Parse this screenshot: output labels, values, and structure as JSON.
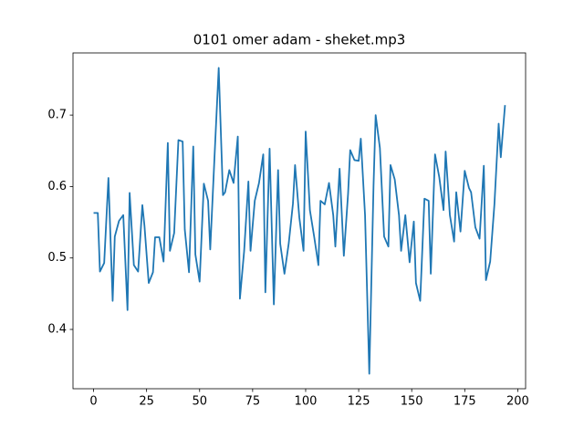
{
  "chart_data": {
    "type": "line",
    "title": "0101 omer adam - sheket.mp3",
    "x": [
      0,
      2,
      3,
      5,
      7,
      9,
      10,
      12,
      14,
      16,
      17,
      19,
      21,
      23,
      24,
      26,
      28,
      29,
      31,
      33,
      35,
      36,
      38,
      40,
      42,
      43,
      45,
      47,
      48,
      50,
      52,
      54,
      55,
      57,
      59,
      61,
      62,
      64,
      66,
      68,
      69,
      71,
      73,
      74,
      76,
      78,
      80,
      81,
      83,
      85,
      87,
      88,
      90,
      92,
      94,
      95,
      97,
      99,
      100,
      102,
      104,
      106,
      107,
      109,
      111,
      113,
      114,
      116,
      118,
      120,
      121,
      123,
      125,
      126,
      128,
      130,
      132,
      133,
      135,
      137,
      139,
      140,
      142,
      144,
      145,
      147,
      149,
      151,
      152,
      154,
      156,
      158,
      159,
      161,
      163,
      165,
      166,
      168,
      170,
      171,
      173,
      175,
      177,
      178,
      180,
      182,
      184,
      185,
      187,
      189,
      191,
      192,
      194
    ],
    "series": [
      {
        "color": "#1f77b4",
        "values": [
          0.563,
          0.563,
          0.481,
          0.493,
          0.612,
          0.44,
          0.53,
          0.552,
          0.56,
          0.427,
          0.591,
          0.49,
          0.481,
          0.574,
          0.545,
          0.465,
          0.48,
          0.529,
          0.529,
          0.495,
          0.661,
          0.51,
          0.535,
          0.665,
          0.663,
          0.54,
          0.48,
          0.656,
          0.505,
          0.467,
          0.604,
          0.58,
          0.512,
          0.64,
          0.766,
          0.588,
          0.592,
          0.623,
          0.605,
          0.67,
          0.443,
          0.51,
          0.607,
          0.51,
          0.58,
          0.605,
          0.645,
          0.452,
          0.653,
          0.435,
          0.623,
          0.52,
          0.478,
          0.52,
          0.576,
          0.63,
          0.557,
          0.51,
          0.677,
          0.567,
          0.53,
          0.49,
          0.58,
          0.575,
          0.605,
          0.56,
          0.516,
          0.625,
          0.503,
          0.59,
          0.651,
          0.637,
          0.636,
          0.667,
          0.56,
          0.338,
          0.601,
          0.7,
          0.654,
          0.53,
          0.516,
          0.63,
          0.61,
          0.56,
          0.51,
          0.56,
          0.494,
          0.551,
          0.465,
          0.44,
          0.583,
          0.58,
          0.478,
          0.645,
          0.613,
          0.567,
          0.649,
          0.56,
          0.523,
          0.592,
          0.537,
          0.622,
          0.598,
          0.592,
          0.543,
          0.527,
          0.629,
          0.469,
          0.495,
          0.575,
          0.688,
          0.641,
          0.714
        ]
      }
    ],
    "xlim": [
      -9.7,
      203.7
    ],
    "ylim": [
      0.317,
      0.787
    ],
    "xticks": [
      0,
      25,
      50,
      75,
      100,
      125,
      150,
      175,
      200
    ],
    "yticks": [
      0.4,
      0.5,
      0.6,
      0.7
    ]
  }
}
